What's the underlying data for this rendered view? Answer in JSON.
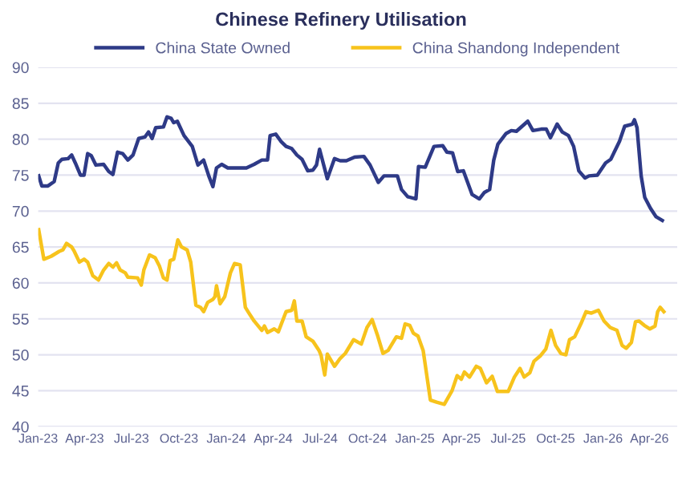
{
  "chart_data": {
    "type": "line",
    "title": "Chinese Refinery Utilisation",
    "series": [
      {
        "name": "China State Owned",
        "color": "#2e3a87",
        "x": [
          "2023-01-02",
          "2023-01-08",
          "2023-01-20",
          "2023-02-01",
          "2023-02-09",
          "2023-02-16",
          "2023-02-28",
          "2023-03-07",
          "2023-03-14",
          "2023-03-24",
          "2023-03-31",
          "2023-04-07",
          "2023-04-14",
          "2023-04-23",
          "2023-05-08",
          "2023-05-18",
          "2023-05-26",
          "2023-06-04",
          "2023-06-14",
          "2023-06-24",
          "2023-07-04",
          "2023-07-15",
          "2023-07-27",
          "2023-08-03",
          "2023-08-10",
          "2023-08-17",
          "2023-09-01",
          "2023-09-08",
          "2023-09-16",
          "2023-09-21",
          "2023-09-28",
          "2023-10-11",
          "2023-10-27",
          "2023-11-07",
          "2023-11-18",
          "2023-11-28",
          "2023-12-06",
          "2023-12-13",
          "2023-12-23",
          "2024-01-04",
          "2024-02-09",
          "2024-02-24",
          "2024-03-10",
          "2024-03-21",
          "2024-03-26",
          "2024-04-06",
          "2024-04-16",
          "2024-04-26",
          "2024-05-07",
          "2024-05-17",
          "2024-05-27",
          "2024-06-07",
          "2024-06-17",
          "2024-06-24",
          "2024-06-30",
          "2024-07-08",
          "2024-07-15",
          "2024-07-29",
          "2024-08-09",
          "2024-08-21",
          "2024-09-06",
          "2024-09-24",
          "2024-10-06",
          "2024-10-22",
          "2024-11-02",
          "2024-11-28",
          "2024-12-06",
          "2024-12-18",
          "2025-01-03",
          "2025-01-08",
          "2025-01-21",
          "2025-02-07",
          "2025-02-24",
          "2025-03-04",
          "2025-03-15",
          "2025-03-25",
          "2025-04-05",
          "2025-04-22",
          "2025-05-06",
          "2025-05-16",
          "2025-05-26",
          "2025-06-03",
          "2025-06-11",
          "2025-06-27",
          "2025-07-07",
          "2025-07-17",
          "2025-07-28",
          "2025-08-08",
          "2025-08-18",
          "2025-09-03",
          "2025-09-13",
          "2025-09-21",
          "2025-10-04",
          "2025-10-14",
          "2025-10-26",
          "2025-11-05",
          "2025-11-15",
          "2025-11-27",
          "2025-12-05",
          "2025-12-21",
          "2026-01-06",
          "2026-01-16",
          "2026-02-02",
          "2026-02-12",
          "2026-02-27",
          "2026-03-03",
          "2026-03-08",
          "2026-03-16",
          "2026-03-23",
          "2026-04-03",
          "2026-04-14",
          "2026-04-26"
        ],
        "values": [
          74.9,
          73.5,
          73.5,
          74.1,
          76.7,
          77.2,
          77.3,
          77.8,
          76.7,
          75.0,
          75.0,
          78.0,
          77.7,
          76.4,
          76.5,
          75.5,
          75.1,
          78.2,
          78.0,
          77.1,
          77.8,
          80.1,
          80.3,
          81.0,
          80.1,
          81.6,
          81.7,
          83.1,
          82.9,
          82.3,
          82.5,
          80.5,
          79.0,
          76.4,
          77.1,
          74.9,
          73.4,
          76.0,
          76.5,
          76.0,
          76.0,
          76.5,
          77.1,
          77.1,
          80.5,
          80.7,
          79.7,
          79.0,
          78.7,
          77.8,
          77.2,
          75.6,
          75.7,
          76.4,
          78.6,
          76.4,
          74.5,
          77.3,
          77.0,
          77.0,
          77.5,
          77.6,
          76.4,
          74.0,
          74.9,
          74.9,
          73.0,
          72.0,
          71.7,
          76.2,
          76.1,
          79.0,
          79.1,
          78.2,
          78.1,
          75.5,
          75.6,
          72.3,
          71.7,
          72.6,
          73.0,
          77.1,
          79.3,
          80.8,
          81.2,
          81.1,
          81.8,
          82.5,
          81.2,
          81.4,
          81.4,
          80.2,
          82.1,
          81.0,
          80.5,
          79.0,
          75.6,
          74.6,
          74.9,
          75.0,
          76.7,
          77.2,
          79.7,
          81.8,
          82.1,
          82.7,
          81.6,
          74.9,
          71.9,
          70.4,
          69.2,
          68.7
        ]
      },
      {
        "name": "China Shandong Independent",
        "color": "#f7c31c",
        "x": [
          "2023-01-02",
          "2023-01-12",
          "2023-01-26",
          "2023-02-11",
          "2023-02-18",
          "2023-02-25",
          "2023-03-07",
          "2023-03-12",
          "2023-03-22",
          "2023-03-31",
          "2023-04-07",
          "2023-04-17",
          "2023-04-28",
          "2023-05-08",
          "2023-05-18",
          "2023-05-26",
          "2023-06-02",
          "2023-06-09",
          "2023-06-19",
          "2023-06-24",
          "2023-07-13",
          "2023-07-20",
          "2023-07-25",
          "2023-08-05",
          "2023-08-16",
          "2023-08-24",
          "2023-09-01",
          "2023-09-08",
          "2023-09-14",
          "2023-09-21",
          "2023-09-29",
          "2023-10-06",
          "2023-10-17",
          "2023-10-24",
          "2023-11-03",
          "2023-11-12",
          "2023-11-18",
          "2023-11-26",
          "2023-12-06",
          "2023-12-10",
          "2023-12-13",
          "2023-12-20",
          "2023-12-29",
          "2024-01-09",
          "2024-01-17",
          "2024-01-28",
          "2024-02-07",
          "2024-02-14",
          "2024-02-24",
          "2024-03-10",
          "2024-03-15",
          "2024-03-21",
          "2024-04-03",
          "2024-04-11",
          "2024-04-26",
          "2024-05-07",
          "2024-05-12",
          "2024-05-17",
          "2024-05-27",
          "2024-06-04",
          "2024-06-17",
          "2024-06-29",
          "2024-07-03",
          "2024-07-10",
          "2024-07-15",
          "2024-07-29",
          "2024-08-09",
          "2024-08-19",
          "2024-09-04",
          "2024-09-19",
          "2024-09-30",
          "2024-10-10",
          "2024-10-20",
          "2024-10-31",
          "2024-11-10",
          "2024-11-26",
          "2024-12-06",
          "2024-12-13",
          "2024-12-22",
          "2024-12-29",
          "2025-01-07",
          "2025-01-17",
          "2025-01-31",
          "2025-02-12",
          "2025-02-27",
          "2025-03-14",
          "2025-03-24",
          "2025-04-01",
          "2025-04-07",
          "2025-04-17",
          "2025-04-30",
          "2025-05-08",
          "2025-05-20",
          "2025-05-31",
          "2025-06-10",
          "2025-07-01",
          "2025-07-13",
          "2025-07-24",
          "2025-08-01",
          "2025-08-12",
          "2025-08-20",
          "2025-09-02",
          "2025-09-12",
          "2025-09-22",
          "2025-10-01",
          "2025-10-11",
          "2025-10-21",
          "2025-10-28",
          "2025-11-07",
          "2025-11-19",
          "2025-11-29",
          "2025-12-09",
          "2025-12-23",
          "2026-01-03",
          "2026-01-15",
          "2026-01-28",
          "2026-02-07",
          "2026-02-15",
          "2026-02-25",
          "2026-03-05",
          "2026-03-12",
          "2026-03-22",
          "2026-04-02",
          "2026-04-12",
          "2026-04-17",
          "2026-04-22",
          "2026-04-29"
        ],
        "values": [
          67.4,
          63.3,
          63.7,
          64.4,
          64.6,
          65.5,
          65.0,
          64.4,
          62.9,
          63.3,
          62.9,
          61.0,
          60.4,
          61.8,
          62.7,
          62.2,
          62.8,
          61.8,
          61.4,
          60.8,
          60.7,
          59.7,
          61.8,
          63.9,
          63.5,
          62.4,
          60.7,
          60.4,
          63.1,
          63.3,
          66.0,
          65.0,
          64.6,
          62.9,
          56.9,
          56.6,
          56.0,
          57.3,
          57.7,
          58.1,
          59.6,
          57.1,
          58.1,
          61.4,
          62.7,
          62.5,
          56.6,
          55.8,
          54.7,
          53.4,
          54.0,
          53.1,
          53.6,
          53.2,
          56.0,
          56.2,
          57.5,
          54.7,
          54.7,
          52.5,
          51.9,
          50.6,
          49.9,
          47.2,
          50.1,
          48.4,
          49.5,
          50.2,
          52.1,
          51.5,
          53.8,
          54.9,
          52.8,
          50.2,
          50.6,
          52.5,
          52.3,
          54.3,
          54.1,
          53.0,
          52.6,
          50.6,
          43.7,
          43.4,
          43.1,
          45.0,
          47.1,
          46.6,
          47.6,
          46.9,
          48.4,
          48.1,
          46.1,
          47.0,
          44.9,
          44.9,
          46.9,
          48.1,
          46.9,
          47.5,
          49.1,
          49.9,
          50.8,
          53.4,
          51.3,
          50.2,
          50.0,
          52.1,
          52.5,
          54.3,
          56.0,
          55.8,
          56.2,
          54.7,
          53.8,
          53.4,
          51.3,
          50.9,
          51.7,
          54.6,
          54.7,
          54.1,
          53.6,
          54.0,
          56.0,
          56.6,
          56.0
        ]
      }
    ],
    "xlim": [
      "2023-01-01",
      "2026-05-25"
    ],
    "xticks": [
      {
        "value": "2023-01-01",
        "label": "Jan-23"
      },
      {
        "value": "2023-04-01",
        "label": "Apr-23"
      },
      {
        "value": "2023-07-01",
        "label": "Jul-23"
      },
      {
        "value": "2023-10-01",
        "label": "Oct-23"
      },
      {
        "value": "2024-01-01",
        "label": "Jan-24"
      },
      {
        "value": "2024-04-01",
        "label": "Apr-24"
      },
      {
        "value": "2024-07-01",
        "label": "Jul-24"
      },
      {
        "value": "2024-10-01",
        "label": "Oct-24"
      },
      {
        "value": "2025-01-01",
        "label": "Jan-25"
      },
      {
        "value": "2025-04-01",
        "label": "Apr-25"
      },
      {
        "value": "2025-07-01",
        "label": "Jul-25"
      },
      {
        "value": "2025-10-01",
        "label": "Oct-25"
      },
      {
        "value": "2026-01-01",
        "label": "Jan-26"
      },
      {
        "value": "2026-04-01",
        "label": "Apr-26"
      }
    ],
    "ylim": [
      40,
      90
    ],
    "yticks": [
      40,
      45,
      50,
      55,
      60,
      65,
      70,
      75,
      80,
      85,
      90
    ],
    "grid": "y",
    "legend": "top",
    "marker": "none",
    "line_style": "solid"
  }
}
